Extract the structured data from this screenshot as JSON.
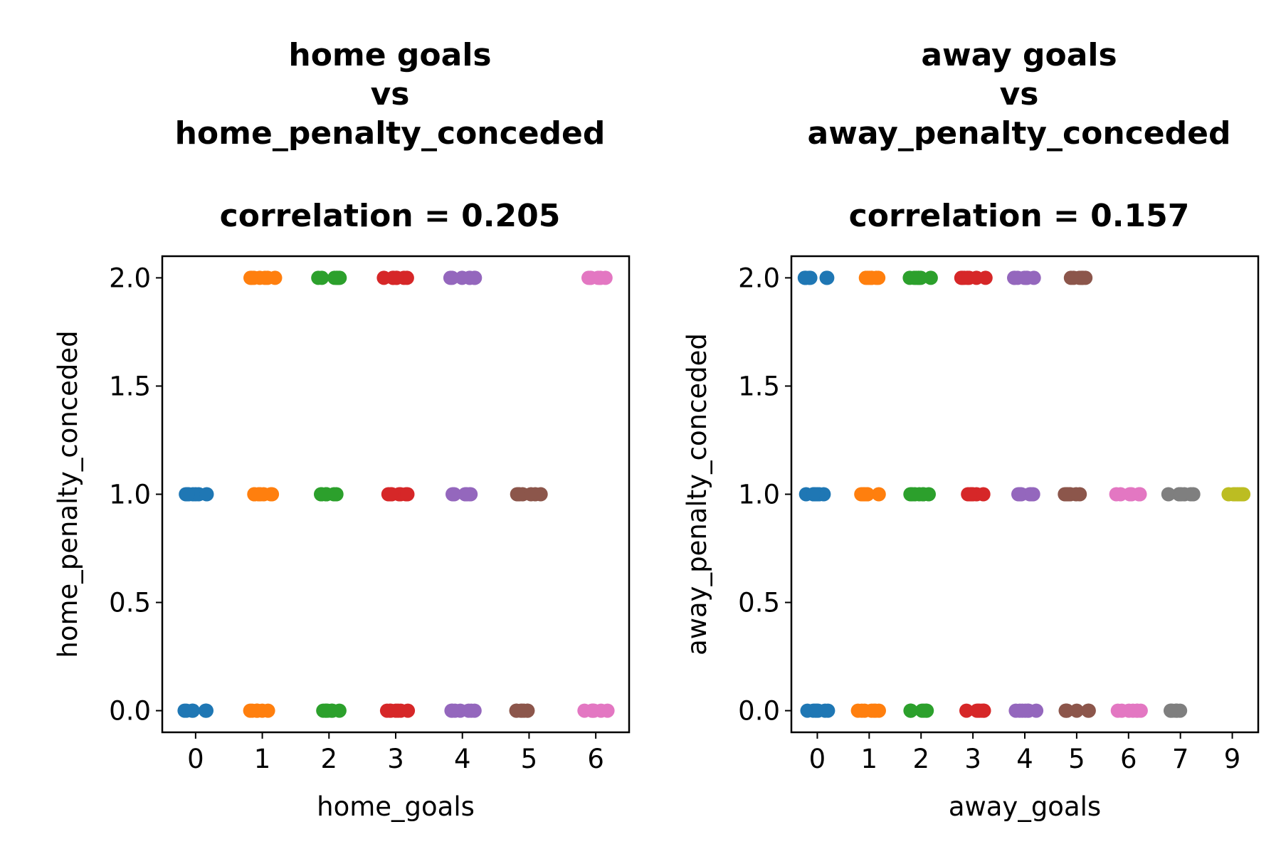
{
  "chart_data": [
    {
      "type": "scatter",
      "title": [
        "home goals",
        "vs",
        "home_penalty_conceded",
        "",
        "correlation = 0.205"
      ],
      "xlabel": "home_goals",
      "ylabel": "home_penalty_conceded",
      "categories": [
        "0",
        "1",
        "2",
        "3",
        "4",
        "5",
        "6"
      ],
      "yticks": [
        "0.0",
        "0.5",
        "1.0",
        "1.5",
        "2.0"
      ],
      "ylim": [
        -0.1,
        2.1
      ],
      "grid": false,
      "series": [
        {
          "category": "0",
          "color": "#1f77b4",
          "y": [
            0,
            1
          ]
        },
        {
          "category": "1",
          "color": "#ff7f0e",
          "y": [
            0,
            1,
            2
          ]
        },
        {
          "category": "2",
          "color": "#2ca02c",
          "y": [
            0,
            1,
            2
          ]
        },
        {
          "category": "3",
          "color": "#d62728",
          "y": [
            0,
            1,
            2
          ]
        },
        {
          "category": "4",
          "color": "#9467bd",
          "y": [
            0,
            1,
            2
          ]
        },
        {
          "category": "5",
          "color": "#8c564b",
          "y": [
            0,
            1
          ]
        },
        {
          "category": "6",
          "color": "#e377c2",
          "y": [
            0,
            2
          ]
        }
      ]
    },
    {
      "type": "scatter",
      "title": [
        "away goals",
        "vs",
        "away_penalty_conceded",
        "",
        "correlation = 0.157"
      ],
      "xlabel": "away_goals",
      "ylabel": "away_penalty_conceded",
      "categories": [
        "0",
        "1",
        "2",
        "3",
        "4",
        "5",
        "6",
        "7",
        "9"
      ],
      "yticks": [
        "0.0",
        "0.5",
        "1.0",
        "1.5",
        "2.0"
      ],
      "ylim": [
        -0.1,
        2.1
      ],
      "grid": false,
      "series": [
        {
          "category": "0",
          "color": "#1f77b4",
          "y": [
            0,
            1,
            2
          ]
        },
        {
          "category": "1",
          "color": "#ff7f0e",
          "y": [
            0,
            1,
            2
          ]
        },
        {
          "category": "2",
          "color": "#2ca02c",
          "y": [
            0,
            1,
            2
          ]
        },
        {
          "category": "3",
          "color": "#d62728",
          "y": [
            0,
            1,
            2
          ]
        },
        {
          "category": "4",
          "color": "#9467bd",
          "y": [
            0,
            1,
            2
          ]
        },
        {
          "category": "5",
          "color": "#8c564b",
          "y": [
            0,
            1,
            2
          ]
        },
        {
          "category": "6",
          "color": "#e377c2",
          "y": [
            0,
            1
          ]
        },
        {
          "category": "7",
          "color": "#7f7f7f",
          "y": [
            0,
            1
          ]
        },
        {
          "category": "9",
          "color": "#bcbd22",
          "y": [
            1
          ]
        }
      ]
    }
  ]
}
